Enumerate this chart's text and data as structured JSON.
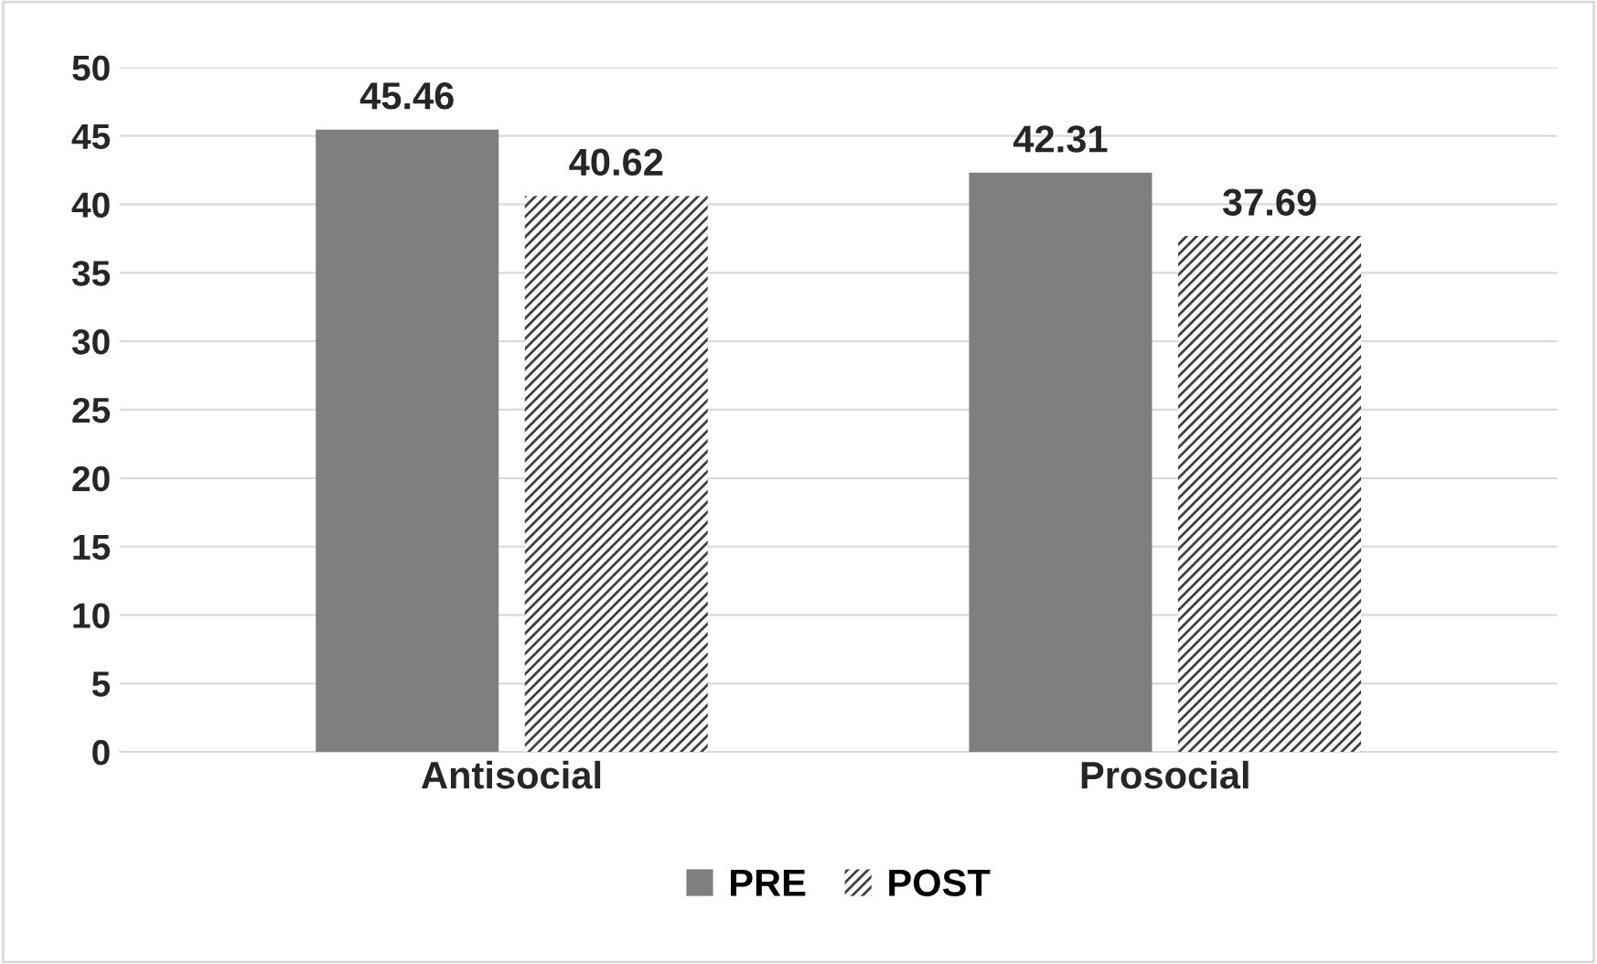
{
  "chart_data": {
    "type": "bar",
    "categories": [
      "Antisocial",
      "Prosocial"
    ],
    "series": [
      {
        "name": "PRE",
        "color": "#7f7f7f",
        "values": [
          45.46,
          42.31
        ]
      },
      {
        "name": "POST",
        "color": "#404040",
        "values": [
          40.62,
          37.69
        ]
      }
    ],
    "ylim": [
      0,
      50
    ],
    "yticks": [
      0,
      5,
      10,
      15,
      20,
      25,
      30,
      35,
      40,
      45,
      50
    ],
    "grid": "y",
    "legend": "bottom",
    "data_labels": true
  }
}
